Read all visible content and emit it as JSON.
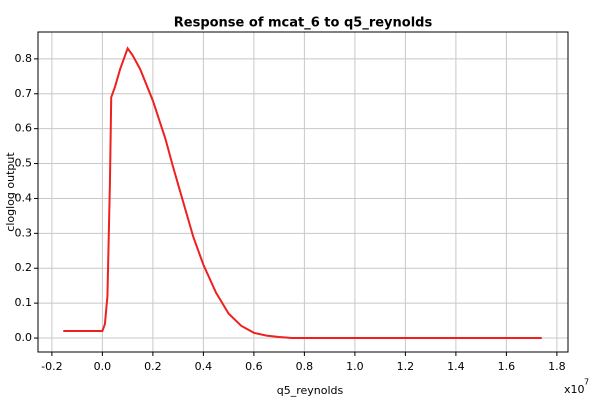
{
  "chart_data": {
    "type": "line",
    "title": "Response of mcat_6 to q5_reynolds",
    "x_label": "q5_reynolds",
    "y_label": "cloglog output",
    "x_multiplier": {
      "base": "x10",
      "exponent": "7"
    },
    "x": [
      -0.155,
      0,
      0.01,
      0.02,
      0.03,
      0.035,
      0.05,
      0.07,
      0.1,
      0.12,
      0.15,
      0.2,
      0.25,
      0.28,
      0.32,
      0.36,
      0.4,
      0.45,
      0.5,
      0.55,
      0.6,
      0.65,
      0.7,
      0.75,
      1.0,
      1.74
    ],
    "series": [
      {
        "name": "mcat_6",
        "color": "#ee2020",
        "values": [
          0.02,
          0.02,
          0.04,
          0.12,
          0.45,
          0.69,
          0.72,
          0.77,
          0.83,
          0.81,
          0.77,
          0.68,
          0.57,
          0.49,
          0.39,
          0.29,
          0.21,
          0.13,
          0.07,
          0.035,
          0.015,
          0.007,
          0.003,
          0,
          0,
          0
        ]
      }
    ],
    "xlim": [
      -0.255,
      1.844
    ],
    "ylim": [
      -0.04,
      0.877
    ],
    "xticks": [
      -0.2,
      {
        "value": 0,
        "label": "0.0"
      },
      0.2,
      0.4,
      0.6,
      0.8,
      {
        "value": 1,
        "label": "1.0"
      },
      1.2,
      1.4,
      1.6,
      1.8
    ],
    "yticks": [
      {
        "value": 0,
        "label": "0.0"
      },
      0.1,
      0.2,
      0.3,
      0.4,
      0.5,
      0.6,
      0.7,
      0.8
    ],
    "grid": true
  }
}
